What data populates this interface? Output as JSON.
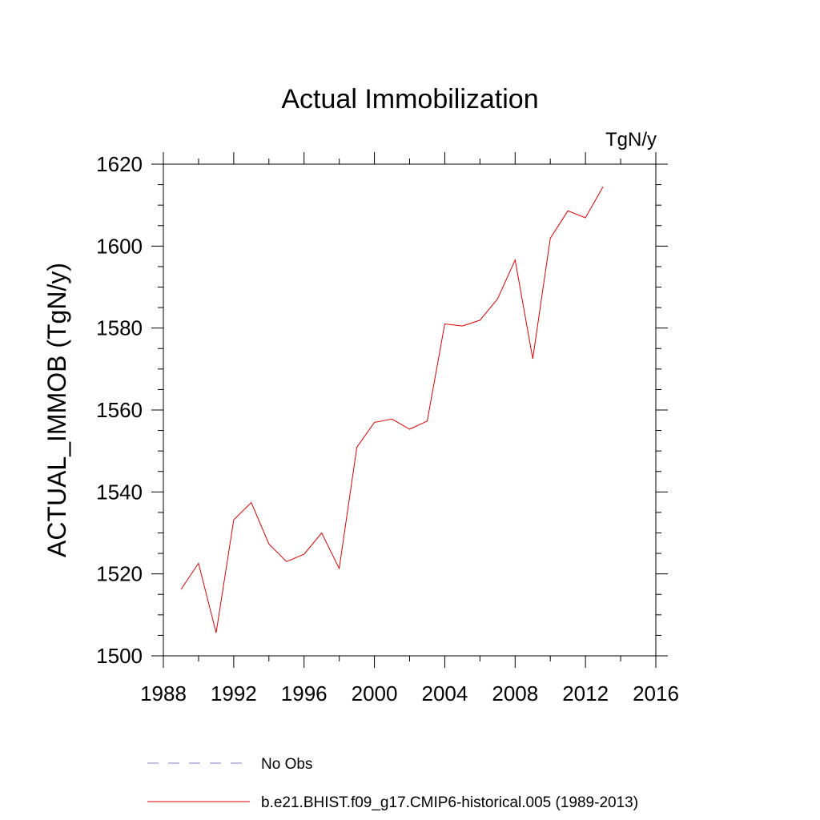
{
  "chart_data": {
    "type": "line",
    "title": "Actual Immobilization",
    "units_label": "TgN/y",
    "xlabel": "",
    "ylabel": "ACTUAL_IMMOB  (TgN/y)",
    "xlim": [
      1988,
      2016
    ],
    "ylim": [
      1500,
      1620
    ],
    "x_ticks": [
      1988,
      1992,
      1996,
      2000,
      2004,
      2008,
      2012,
      2016
    ],
    "y_ticks": [
      1500,
      1520,
      1540,
      1560,
      1580,
      1600,
      1620
    ],
    "grid": false,
    "legend_position": "bottom",
    "series": [
      {
        "name": "No Obs",
        "color": "#8080c0",
        "style": "dashed",
        "x": [],
        "values": []
      },
      {
        "name": "b.e21.BHIST.f09_g17.CMIP6-historical.005 (1989-2013)",
        "color": "#e00000",
        "style": "solid",
        "x": [
          1989,
          1990,
          1991,
          1992,
          1993,
          1994,
          1995,
          1996,
          1997,
          1998,
          1999,
          2000,
          2001,
          2002,
          2003,
          2004,
          2005,
          2006,
          2007,
          2008,
          2009,
          2010,
          2011,
          2012,
          2013
        ],
        "values": [
          1516.2,
          1522.6,
          1505.6,
          1533.2,
          1537.4,
          1527.3,
          1523.0,
          1524.8,
          1530.0,
          1521.3,
          1550.9,
          1557.0,
          1557.8,
          1555.3,
          1557.3,
          1581.0,
          1580.5,
          1581.9,
          1587.1,
          1596.6,
          1572.5,
          1601.9,
          1608.6,
          1606.9,
          1614.5
        ]
      }
    ]
  }
}
